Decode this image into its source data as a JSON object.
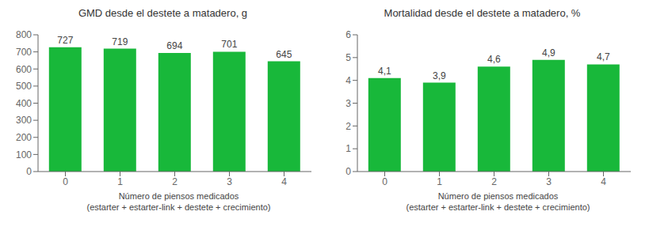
{
  "chart_data": [
    {
      "type": "bar",
      "title": "GMD desde el destete a matadero, g",
      "xlabel": "Número de piensos medicados\n(estarter + estarter-link + destete + crecimiento)",
      "categories": [
        "0",
        "1",
        "2",
        "3",
        "4"
      ],
      "values": [
        727,
        719,
        694,
        701,
        645
      ],
      "color": "#18b83a",
      "ylim": [
        0,
        800
      ],
      "yticks": [
        0,
        100,
        200,
        300,
        400,
        500,
        600,
        700,
        800
      ],
      "grid": false,
      "data_labels": true
    },
    {
      "type": "bar",
      "title": "Mortalidad desde el destete a matadero, %",
      "xlabel": "Número de piensos medicados\n(estarter + estarter-link + destete + crecimiento)",
      "categories": [
        "0",
        "1",
        "2",
        "3",
        "4"
      ],
      "values": [
        4.1,
        3.9,
        4.6,
        4.9,
        4.7
      ],
      "value_labels": [
        "4,1",
        "3,9",
        "4,6",
        "4,9",
        "4,7"
      ],
      "color": "#18b83a",
      "ylim": [
        0,
        6
      ],
      "yticks": [
        0,
        1,
        2,
        3,
        4,
        5,
        6
      ],
      "grid": false,
      "data_labels": true
    }
  ]
}
